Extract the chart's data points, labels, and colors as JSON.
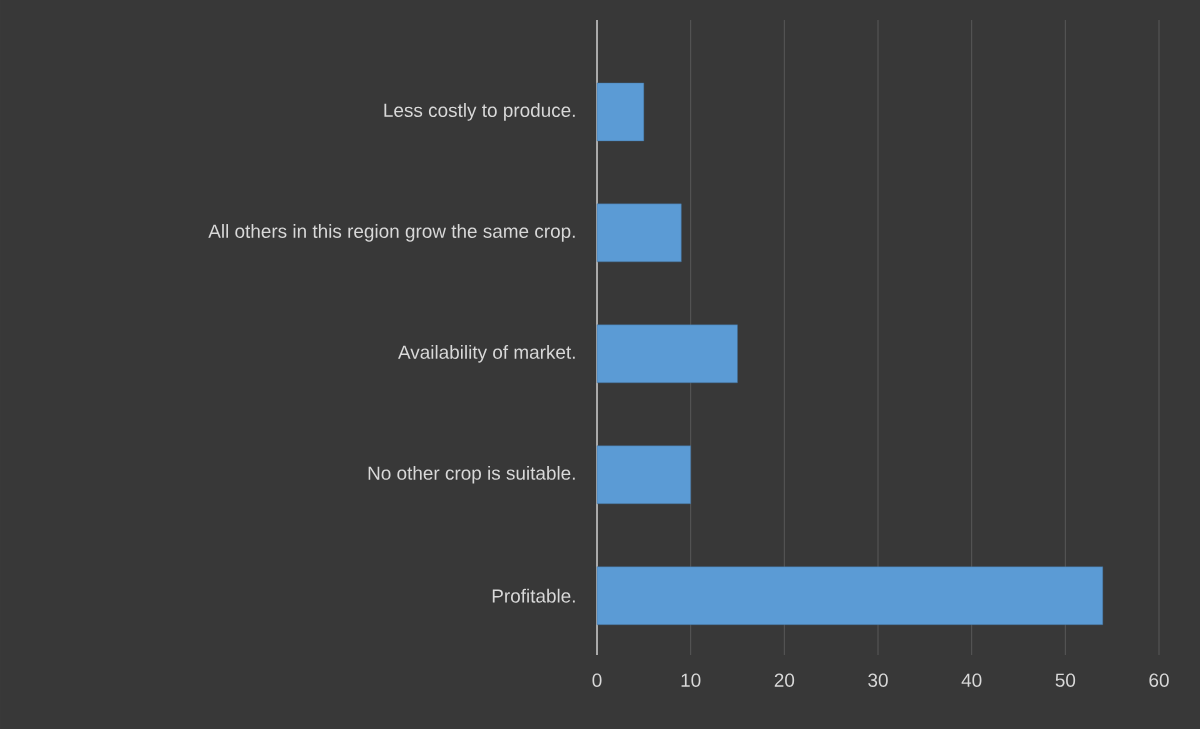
{
  "chart_data": {
    "type": "bar",
    "orientation": "horizontal",
    "categories": [
      "Less costly to produce.",
      "All others in this region grow the same crop.",
      "Availability of market.",
      "No other crop is suitable.",
      "Profitable."
    ],
    "values": [
      5,
      9,
      15,
      10,
      54
    ],
    "color": "#5b9bd5",
    "xlim": [
      0,
      60
    ],
    "xticks": [
      0,
      10,
      20,
      30,
      40,
      50,
      60
    ],
    "grid": "x"
  }
}
